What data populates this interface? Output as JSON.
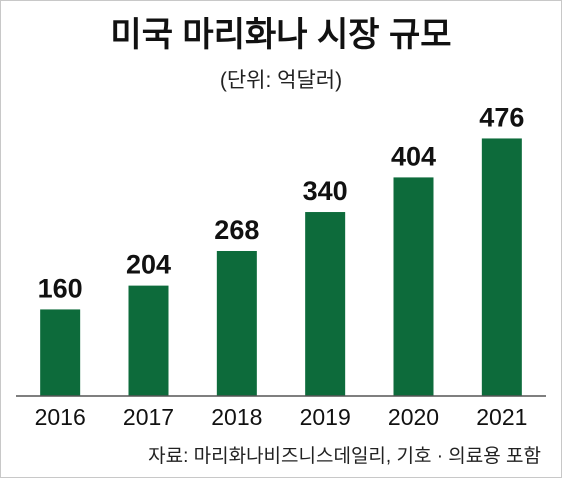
{
  "chart_data": {
    "type": "bar",
    "title": "미국 마리화나 시장 규모",
    "subtitle": "(단위: 억달러)",
    "categories": [
      "2016",
      "2017",
      "2018",
      "2019",
      "2020",
      "2021"
    ],
    "values": [
      160,
      204,
      268,
      340,
      404,
      476
    ],
    "ylim": [
      0,
      560
    ],
    "grid": false,
    "bar_color": "#0d6b3b",
    "source": "자료: 마리화나비즈니스데일리, 기호 · 의료용 포함"
  }
}
